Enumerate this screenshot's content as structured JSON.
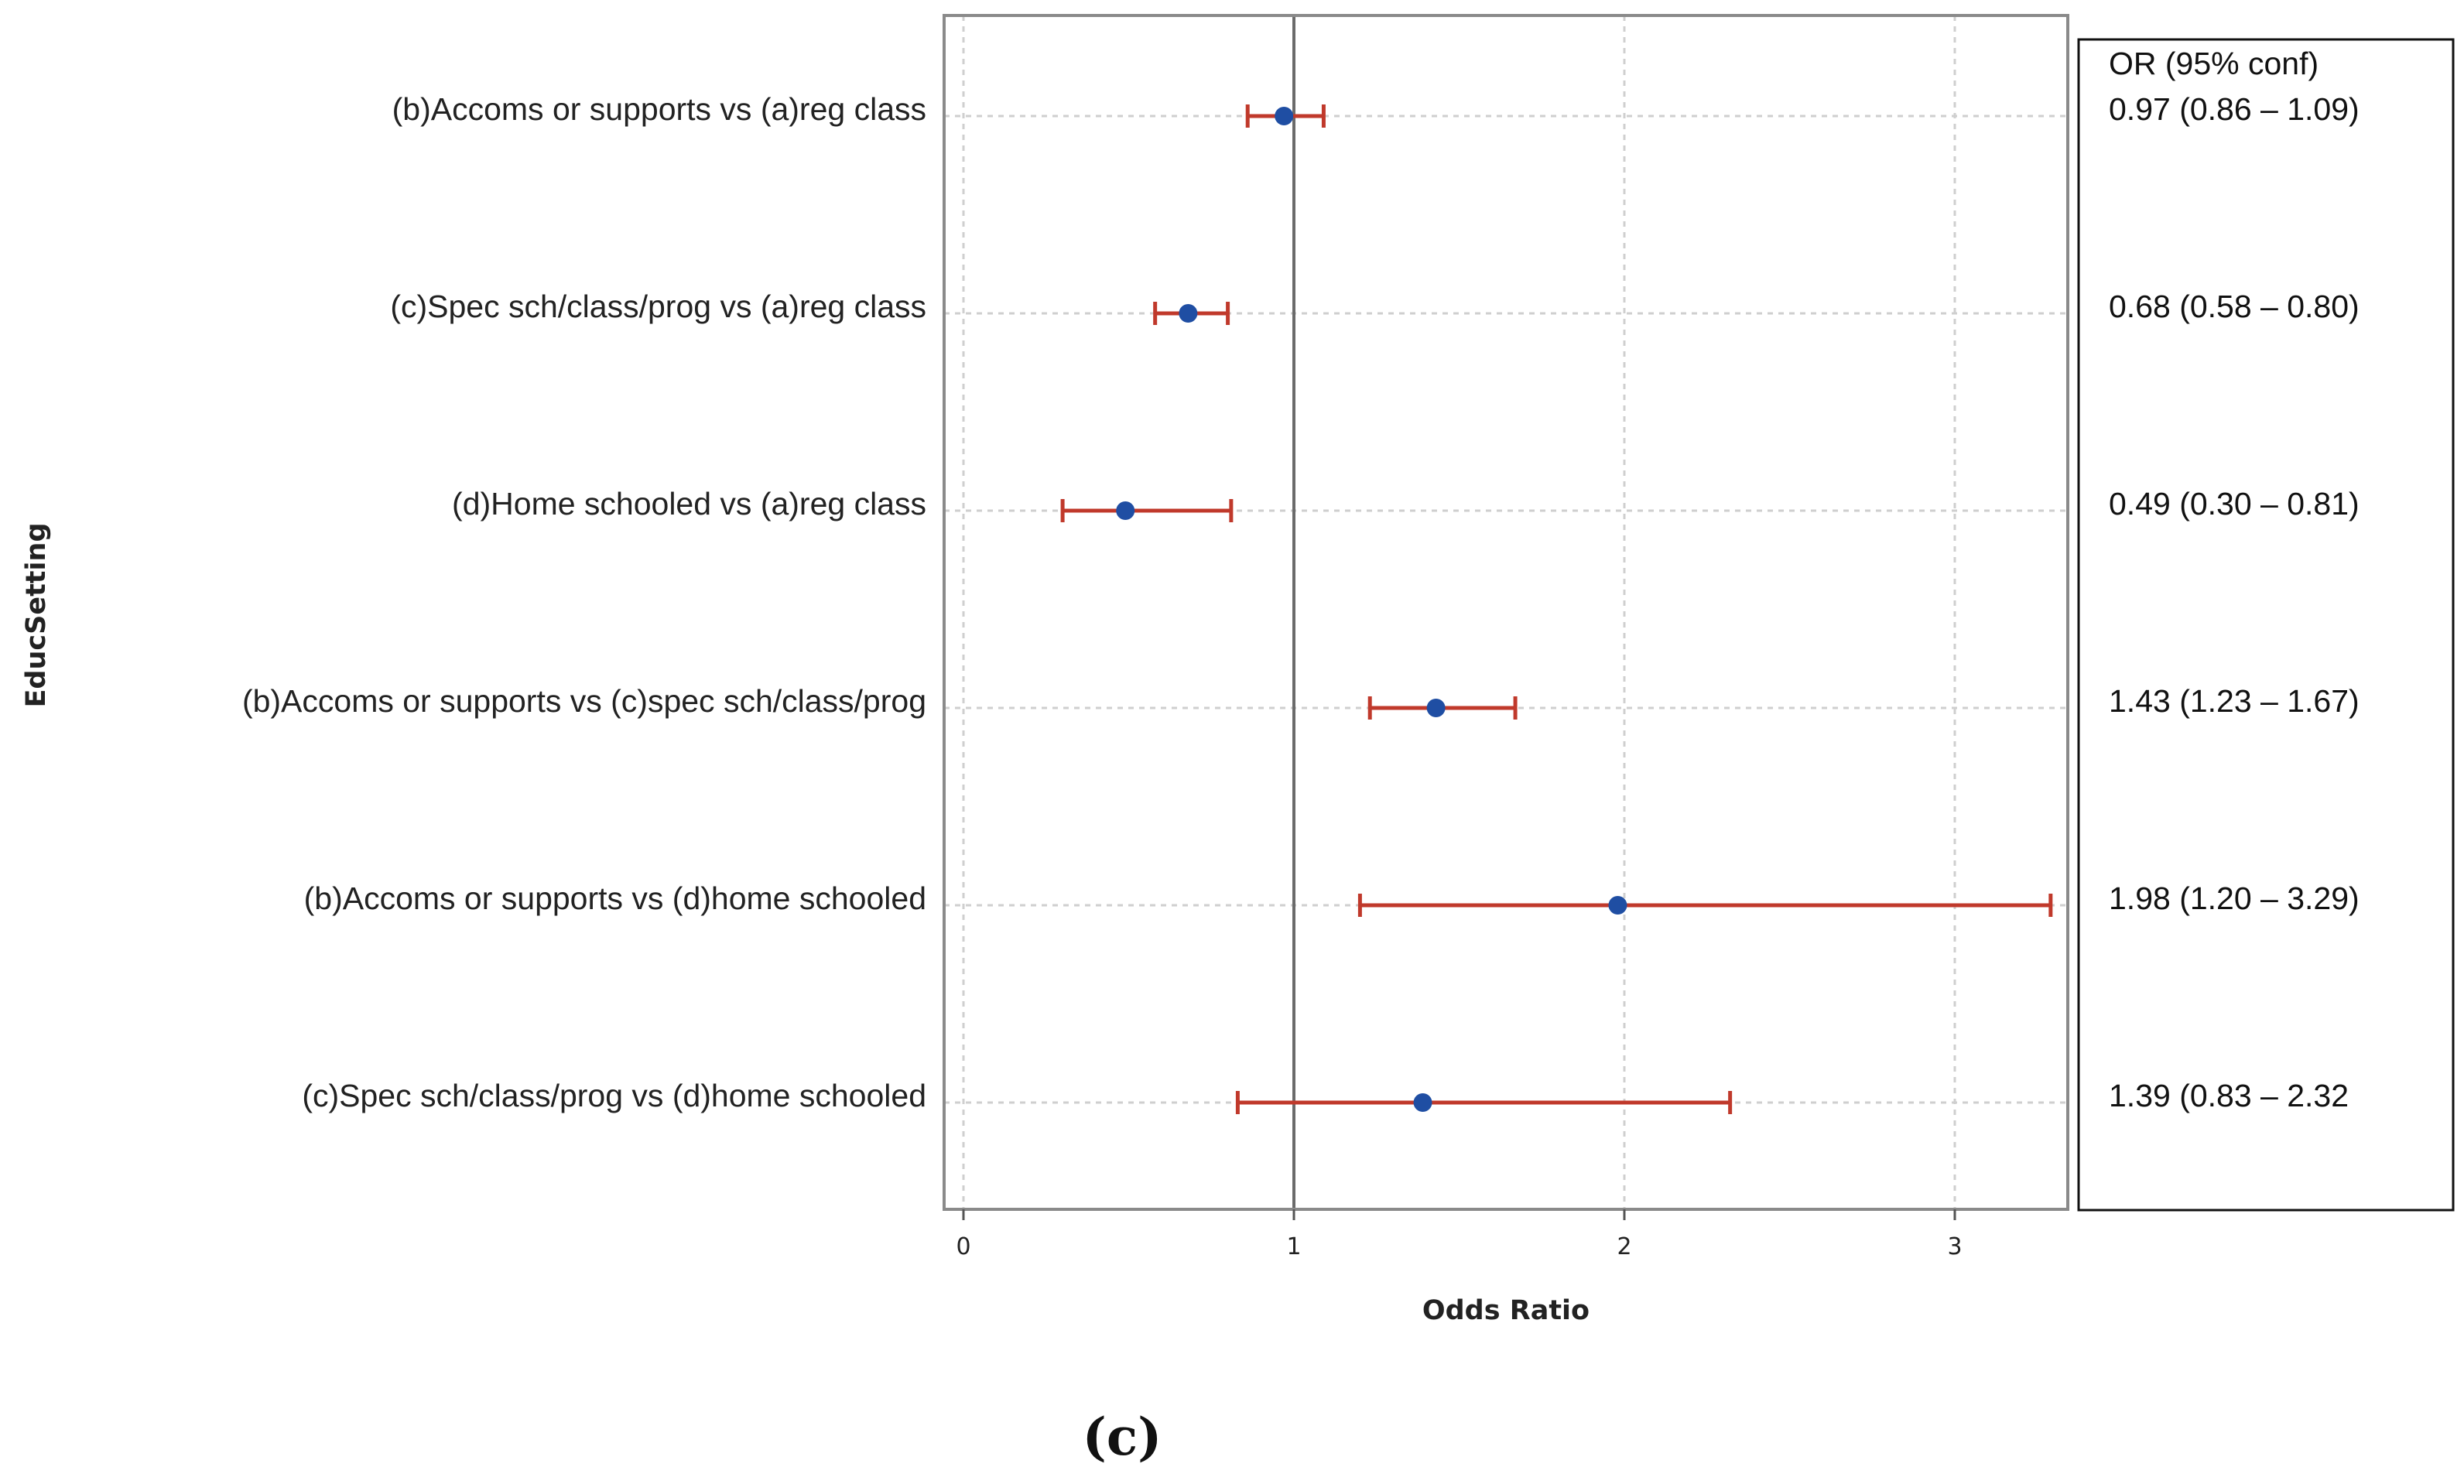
{
  "chart_data": {
    "type": "forest",
    "xlabel": "Odds Ratio",
    "ylabel": "EducSetting",
    "xlim": [
      -0.03,
      3.3
    ],
    "xticks": [
      0,
      1,
      2,
      3
    ],
    "xtick_labels": [
      "0",
      "1",
      "2",
      "3"
    ],
    "reference_line": 1,
    "grid": true,
    "panel_label": "(c)",
    "table_header": "OR (95% conf)",
    "rows": [
      {
        "label": "(b)Accoms or supports vs (a)reg class",
        "or": 0.97,
        "lower": 0.86,
        "upper": 1.09,
        "or_text": "0.97 (0.86 – 1.09)"
      },
      {
        "label": "(c)Spec sch/class/prog vs (a)reg class",
        "or": 0.68,
        "lower": 0.58,
        "upper": 0.8,
        "or_text": "0.68 (0.58 – 0.80)"
      },
      {
        "label": "(d)Home schooled vs (a)reg class",
        "or": 0.49,
        "lower": 0.3,
        "upper": 0.81,
        "or_text": "0.49 (0.30 – 0.81)"
      },
      {
        "label": "(b)Accoms or supports vs (c)spec sch/class/prog",
        "or": 1.43,
        "lower": 1.23,
        "upper": 1.67,
        "or_text": "1.43 (1.23 – 1.67)"
      },
      {
        "label": "(b)Accoms or supports vs (d)home schooled",
        "or": 1.98,
        "lower": 1.2,
        "upper": 3.29,
        "or_text": "1.98 (1.20 – 3.29)"
      },
      {
        "label": "(c)Spec sch/class/prog vs (d)home schooled",
        "or": 1.39,
        "lower": 0.83,
        "upper": 2.32,
        "or_text": "1.39 (0.83 – 2.32"
      }
    ],
    "colors": {
      "point": "#1f4ea3",
      "ci": "#c0392b",
      "frame": "#8a8a8a",
      "grid": "#cfcfcf",
      "reference": "#6b6b6b"
    }
  }
}
